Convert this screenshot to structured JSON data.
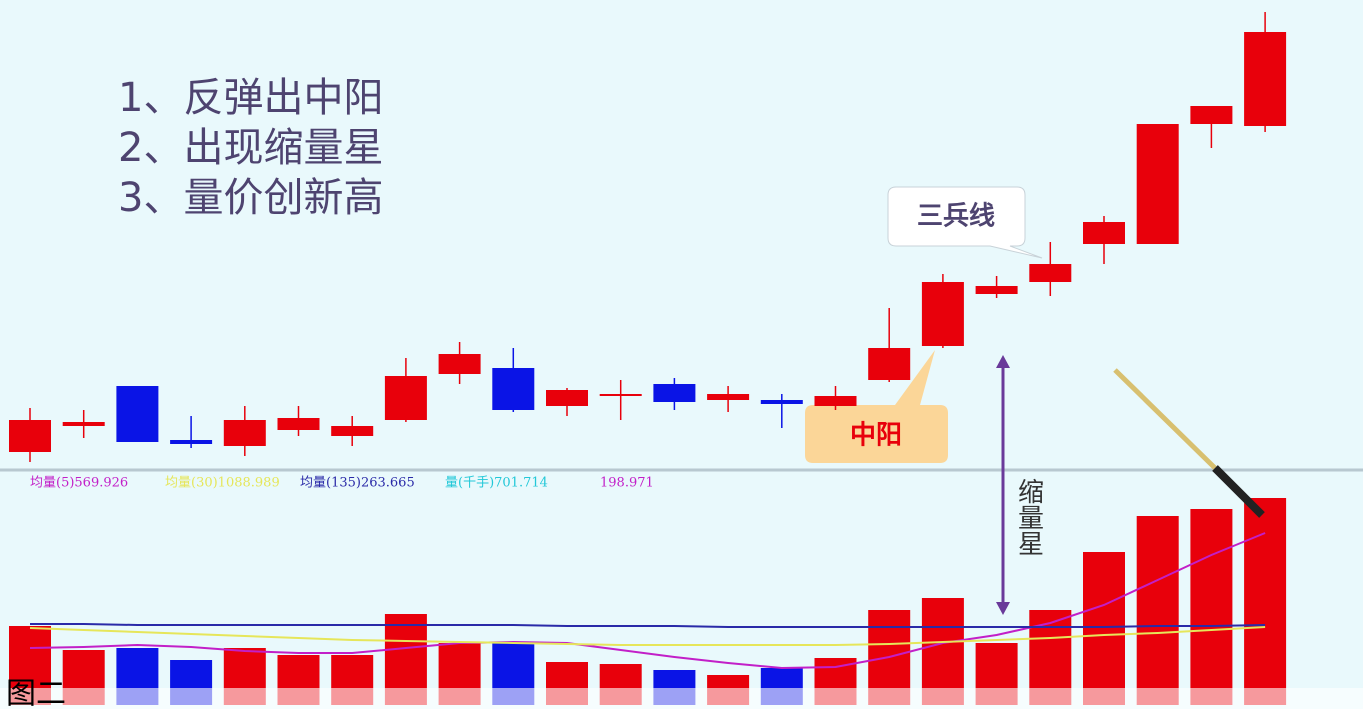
{
  "chart_data": {
    "type": "candlestick",
    "annotations": [
      "1、反弹出中阳",
      "2、出现缩量星",
      "3、量价创新高"
    ],
    "callouts": [
      "三兵线",
      "中阳",
      "缩量星"
    ],
    "caption": "图二",
    "up_color": "#e8000b",
    "down_color": "#0a14e6",
    "ylim": [
      0,
      115
    ],
    "open": [
      4.5,
      11,
      21,
      7.5,
      6,
      10,
      8.5,
      12.5,
      24,
      25.5,
      16,
      18.5,
      21.5,
      17.5,
      17.5,
      16,
      22.5,
      31,
      44,
      47,
      56.5,
      56.5,
      86.5,
      86
    ],
    "high": [
      15.5,
      15,
      21,
      13.5,
      16,
      16,
      13.5,
      28,
      32,
      30.5,
      20.5,
      22.5,
      23,
      21,
      19,
      21,
      40.5,
      49,
      48.5,
      57,
      63.5,
      86.5,
      91,
      114.5
    ],
    "low": [
      2,
      8,
      7,
      5.5,
      3.5,
      8.5,
      6,
      12,
      21.5,
      14.5,
      13.5,
      12.5,
      15,
      14.5,
      10.5,
      15,
      22,
      30.5,
      43,
      43.5,
      51.5,
      56.5,
      80.5,
      84.5
    ],
    "close": [
      12.5,
      12,
      7,
      6.5,
      12.5,
      13,
      11,
      23.5,
      29,
      15,
      20,
      19,
      17,
      19,
      16.5,
      18.5,
      30.5,
      47,
      46,
      51.5,
      62,
      86.5,
      91,
      109.5
    ],
    "volume": {
      "vlim": [
        0,
        220
      ],
      "values": [
        79,
        55,
        57,
        45,
        57,
        50,
        50,
        91,
        62,
        62,
        43,
        41,
        35,
        30,
        37,
        47,
        95,
        107,
        62,
        95,
        153,
        189,
        196,
        207
      ],
      "series": [
        {
          "name": "均量(5)569.926",
          "color": "#c21fc8",
          "values": [
            57,
            58,
            60,
            58,
            54,
            52,
            52,
            57,
            62,
            63,
            62,
            55,
            48,
            42,
            37,
            38,
            48,
            62,
            70,
            82,
            100,
            125,
            150,
            172
          ]
        },
        {
          "name": "均量(30)1088.989",
          "color": "#e6e65a",
          "values": [
            77,
            75,
            73,
            71,
            69,
            67,
            65,
            64,
            63,
            62,
            61,
            60,
            60,
            60,
            60,
            60,
            61,
            63,
            65,
            67,
            70,
            72,
            75,
            78
          ]
        },
        {
          "name": "均量(135)263.665",
          "color": "#2a2aa8",
          "values": [
            81,
            81,
            80,
            80,
            80,
            80,
            80,
            80,
            80,
            80,
            79,
            79,
            79,
            78,
            78,
            78,
            78,
            78,
            78,
            78,
            78,
            79,
            79,
            80
          ]
        }
      ],
      "labels": [
        {
          "text": "量(千手)701.714",
          "color": "#22c8d8"
        },
        {
          "text": "198.971",
          "color": "#c21fc8"
        }
      ]
    }
  }
}
